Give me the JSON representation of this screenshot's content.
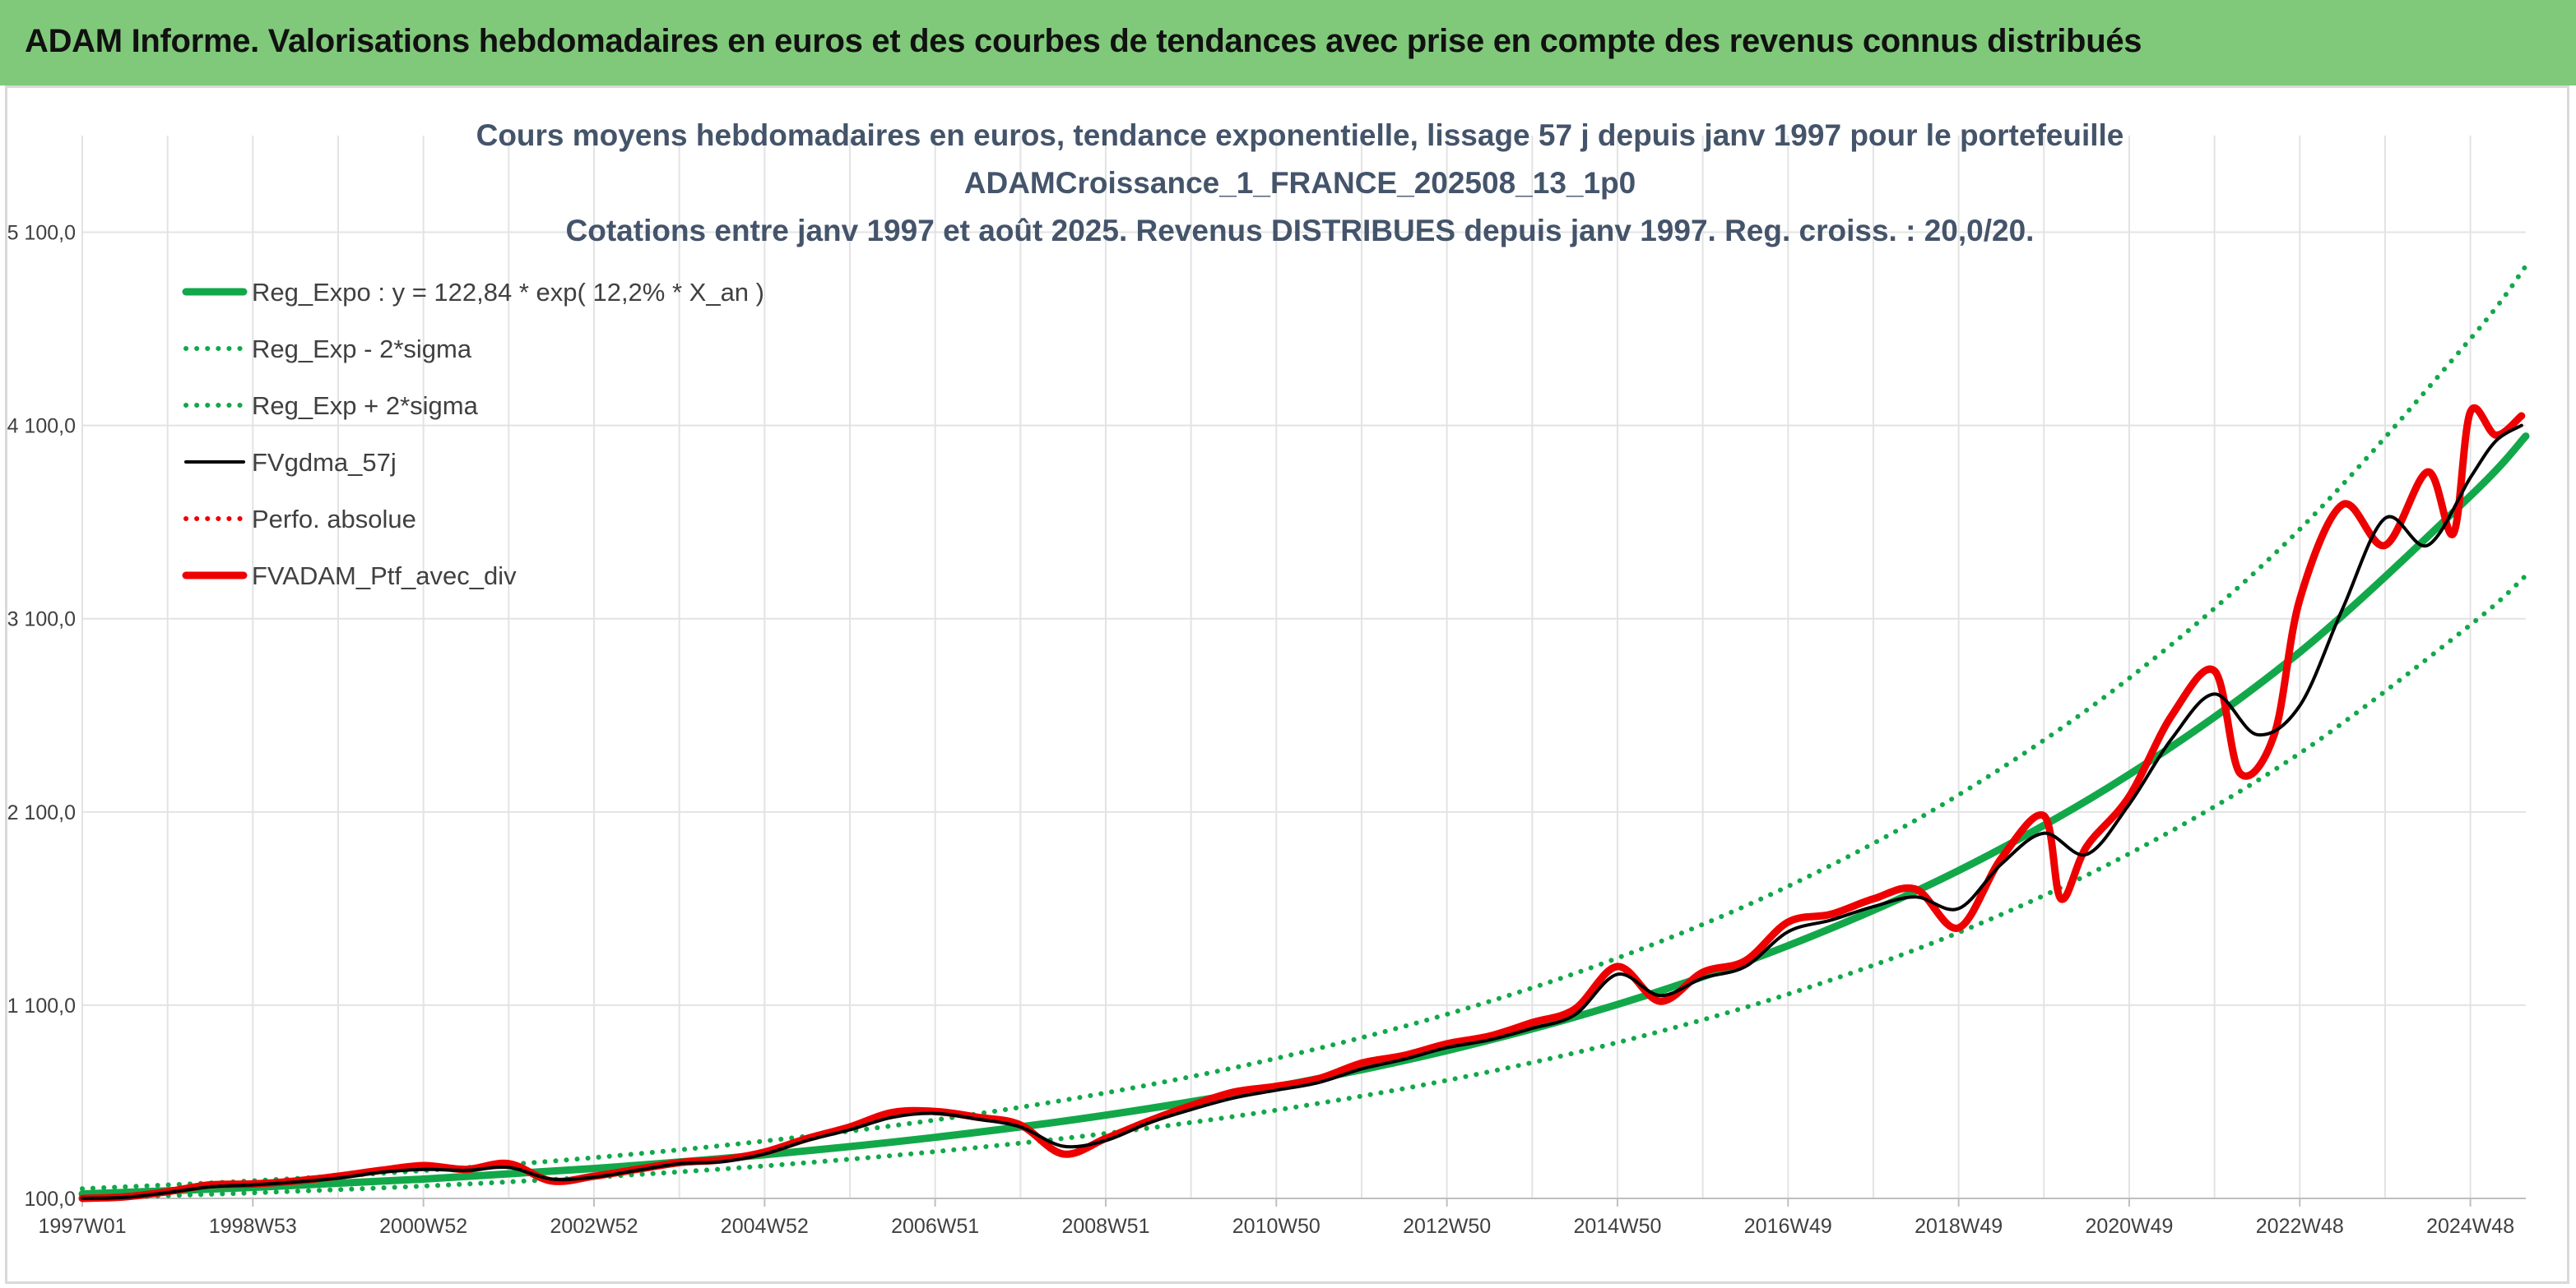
{
  "banner": {
    "title": "ADAM Informe. Valorisations hebdomadaires en euros et des courbes de tendances avec prise en compte des revenus connus distribués"
  },
  "colors": {
    "banner": "#80c97a",
    "accent": "#f5c518",
    "trend": "#12a84a",
    "band": "#12a84a",
    "smoothed": "#000000",
    "portfolio": "#ee0000",
    "perfo": "#ee0000"
  },
  "chart_data": {
    "type": "line",
    "title": [
      "Cours moyens hebdomadaires en euros, tendance exponentielle, lissage 57 j depuis janv 1997 pour le portefeuille",
      "ADAMCroissance_1_FRANCE_202508_13_1p0",
      "Cotations entre janv 1997 et août 2025. Revenus DISTRIBUES depuis janv 1997. Reg. croiss. : 20,0/20."
    ],
    "xlabel": "",
    "ylabel": "",
    "x_ticks": [
      "1997W01",
      "1998W53",
      "2000W52",
      "2002W52",
      "2004W52",
      "2006W51",
      "2008W51",
      "2010W50",
      "2012W50",
      "2014W50",
      "2016W49",
      "2018W49",
      "2020W49",
      "2022W48",
      "2024W48"
    ],
    "x_tick_years": [
      1997.0,
      1999.0,
      2001.0,
      2003.0,
      2005.0,
      2007.0,
      2009.0,
      2011.0,
      2013.0,
      2015.0,
      2017.0,
      2019.0,
      2021.0,
      2023.0,
      2025.0
    ],
    "xlim": [
      1997.0,
      2025.65
    ],
    "y_ticks": [
      100,
      1100,
      2100,
      3100,
      4100,
      5100
    ],
    "y_tick_labels": [
      "100,0",
      "1 100,0",
      "2 100,0",
      "3 100,0",
      "4 100,0",
      "5 100,0"
    ],
    "ylim": [
      100,
      5600
    ],
    "grid": true,
    "legend_position": "top-left",
    "series": [
      {
        "name": "Reg_Expo : y = 122,84 * exp( 12,2% *  X_an )",
        "style": "solid-thick",
        "color": "#12a84a",
        "x": [
          1997,
          1999,
          2001,
          2003,
          2005,
          2007,
          2009,
          2011,
          2013,
          2015,
          2017,
          2019,
          2021,
          2023,
          2025,
          2025.65
        ],
        "y": [
          123,
          157,
          200,
          255,
          326,
          416,
          531,
          678,
          865,
          1104,
          1408,
          1797,
          2294,
          2927,
          3735,
          4045
        ]
      },
      {
        "name": "Reg_Exp - 2*sigma",
        "style": "dotted",
        "color": "#12a84a",
        "x": [
          1997,
          1999,
          2001,
          2003,
          2005,
          2007,
          2009,
          2011,
          2013,
          2015,
          2017,
          2019,
          2021,
          2023,
          2025,
          2025.65
        ],
        "y": [
          101,
          129,
          164,
          210,
          268,
          342,
          436,
          557,
          711,
          907,
          1157,
          1476,
          1884,
          2404,
          3068,
          3323
        ]
      },
      {
        "name": "Reg_Exp + 2*sigma",
        "style": "dotted",
        "color": "#12a84a",
        "x": [
          1997,
          1999,
          2001,
          2003,
          2005,
          2007,
          2009,
          2011,
          2013,
          2015,
          2017,
          2019,
          2021,
          2023,
          2025,
          2025.65
        ],
        "y": [
          150,
          191,
          244,
          311,
          397,
          506,
          646,
          825,
          1053,
          1344,
          1715,
          2188,
          2792,
          3563,
          4548,
          4925
        ]
      },
      {
        "name": "FVgdma_57j",
        "style": "solid",
        "color": "#000000",
        "x": [
          1997.0,
          1997.5,
          1998.0,
          1998.5,
          1999.0,
          1999.5,
          2000.0,
          2000.5,
          2001.0,
          2001.5,
          2002.0,
          2002.5,
          2003.0,
          2003.5,
          2004.0,
          2004.5,
          2005.0,
          2005.5,
          2006.0,
          2006.5,
          2007.0,
          2007.5,
          2008.0,
          2008.5,
          2009.0,
          2009.5,
          2010.0,
          2010.5,
          2011.0,
          2011.5,
          2012.0,
          2012.5,
          2013.0,
          2013.5,
          2014.0,
          2014.5,
          2015.0,
          2015.5,
          2016.0,
          2016.5,
          2017.0,
          2017.5,
          2018.0,
          2018.5,
          2019.0,
          2019.5,
          2020.0,
          2020.5,
          2021.0,
          2021.5,
          2022.0,
          2022.5,
          2023.0,
          2023.5,
          2024.0,
          2024.5,
          2025.0,
          2025.3,
          2025.6
        ],
        "y": [
          100,
          105,
          130,
          160,
          170,
          185,
          205,
          235,
          250,
          245,
          260,
          200,
          210,
          245,
          280,
          290,
          330,
          400,
          455,
          520,
          540,
          510,
          470,
          370,
          400,
          490,
          560,
          620,
          660,
          700,
          770,
          820,
          880,
          920,
          980,
          1050,
          1260,
          1150,
          1240,
          1300,
          1480,
          1540,
          1610,
          1660,
          1600,
          1830,
          1990,
          1880,
          2140,
          2480,
          2710,
          2500,
          2650,
          3150,
          3620,
          3480,
          3830,
          4020,
          4100
        ]
      },
      {
        "name": "Perfo. absolue",
        "style": "dotted",
        "color": "#ee0000",
        "x": [],
        "y": []
      },
      {
        "name": "FVADAM_Ptf_avec_div",
        "style": "solid-thick",
        "color": "#ee0000",
        "x": [
          1997.0,
          1997.5,
          1998.0,
          1998.5,
          1999.0,
          1999.5,
          2000.0,
          2000.5,
          2001.0,
          2001.5,
          2002.0,
          2002.5,
          2003.0,
          2003.5,
          2004.0,
          2004.5,
          2005.0,
          2005.5,
          2006.0,
          2006.5,
          2007.0,
          2007.5,
          2008.0,
          2008.5,
          2009.0,
          2009.5,
          2010.0,
          2010.5,
          2011.0,
          2011.5,
          2012.0,
          2012.5,
          2013.0,
          2013.5,
          2014.0,
          2014.5,
          2015.0,
          2015.5,
          2016.0,
          2016.5,
          2017.0,
          2017.5,
          2018.0,
          2018.5,
          2019.0,
          2019.5,
          2020.0,
          2020.2,
          2020.5,
          2021.0,
          2021.5,
          2022.0,
          2022.3,
          2022.7,
          2023.0,
          2023.5,
          2024.0,
          2024.5,
          2024.8,
          2025.0,
          2025.3,
          2025.6
        ],
        "y": [
          100,
          108,
          135,
          170,
          175,
          190,
          215,
          245,
          270,
          250,
          280,
          190,
          215,
          250,
          285,
          300,
          340,
          410,
          470,
          545,
          550,
          520,
          480,
          330,
          410,
          500,
          580,
          650,
          680,
          720,
          800,
          840,
          900,
          940,
          1010,
          1080,
          1300,
          1120,
          1270,
          1330,
          1530,
          1570,
          1650,
          1700,
          1500,
          1860,
          2080,
          1650,
          1920,
          2180,
          2600,
          2830,
          2300,
          2500,
          3200,
          3690,
          3480,
          3860,
          3540,
          4170,
          4050,
          4150
        ]
      }
    ]
  }
}
